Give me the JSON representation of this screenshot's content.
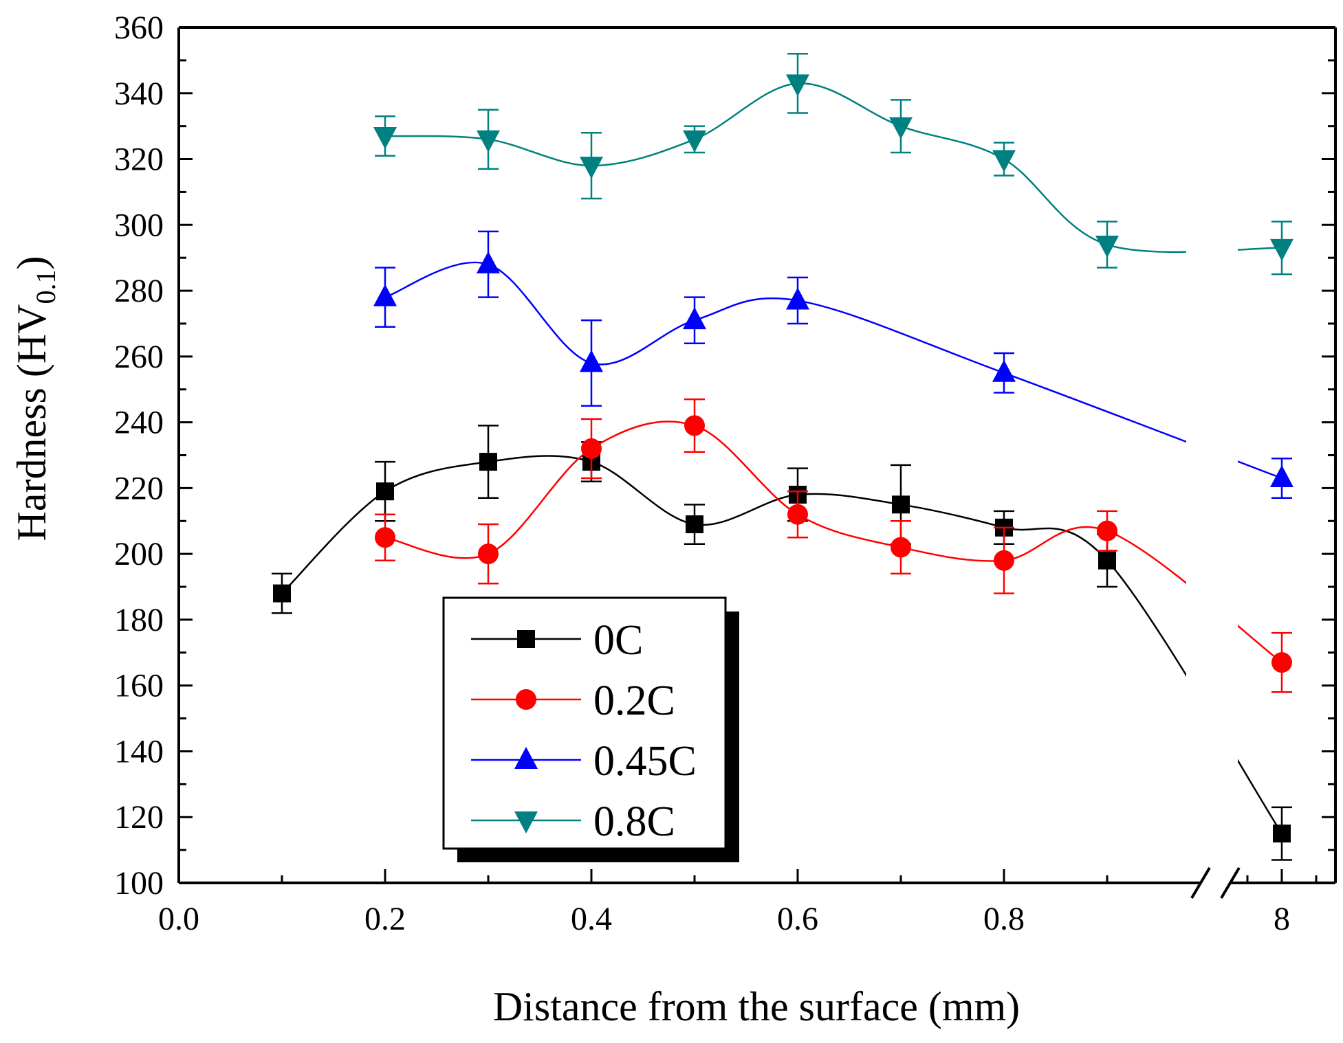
{
  "chart_data": {
    "type": "line",
    "title": "",
    "xlabel": "Distance  from the surface (mm)",
    "ylabel": "Hardness (HV",
    "ylabel_sub": "0.1",
    "ylabel_end": ")",
    "ylim": [
      100,
      360
    ],
    "y_ticks": [
      "100",
      "120",
      "140",
      "160",
      "180",
      "200",
      "220",
      "240",
      "260",
      "280",
      "300",
      "320",
      "340",
      "360"
    ],
    "x_ticks": [
      "0.0",
      "0.2",
      "0.4",
      "0.6",
      "0.8",
      "8"
    ],
    "x_break": "axis broken between 0.95 and 8",
    "legend_position": "center-left",
    "series": [
      {
        "name": "0C",
        "color": "#000000",
        "marker": "square",
        "points": [
          {
            "x": 0.1,
            "y": 188,
            "err": 6
          },
          {
            "x": 0.2,
            "y": 219,
            "err": 9
          },
          {
            "x": 0.3,
            "y": 228,
            "err": 11
          },
          {
            "x": 0.4,
            "y": 228,
            "err": 6
          },
          {
            "x": 0.5,
            "y": 209,
            "err": 6
          },
          {
            "x": 0.6,
            "y": 218,
            "err": 8
          },
          {
            "x": 0.7,
            "y": 215,
            "err": 12
          },
          {
            "x": 0.8,
            "y": 208,
            "err": 5
          },
          {
            "x": 0.9,
            "y": 198,
            "err": 8
          },
          {
            "x": 8,
            "y": 115,
            "err": 8
          }
        ]
      },
      {
        "name": "0.2C",
        "color": "#ff0000",
        "marker": "circle",
        "points": [
          {
            "x": 0.2,
            "y": 205,
            "err": 7
          },
          {
            "x": 0.3,
            "y": 200,
            "err": 9
          },
          {
            "x": 0.4,
            "y": 232,
            "err": 9
          },
          {
            "x": 0.5,
            "y": 239,
            "err": 8
          },
          {
            "x": 0.6,
            "y": 212,
            "err": 7
          },
          {
            "x": 0.7,
            "y": 202,
            "err": 8
          },
          {
            "x": 0.8,
            "y": 198,
            "err": 10
          },
          {
            "x": 0.9,
            "y": 207,
            "err": 6
          },
          {
            "x": 8,
            "y": 167,
            "err": 9
          }
        ]
      },
      {
        "name": "0.45C",
        "color": "#0000ff",
        "marker": "triangle-up",
        "points": [
          {
            "x": 0.2,
            "y": 278,
            "err": 9
          },
          {
            "x": 0.3,
            "y": 288,
            "err": 10
          },
          {
            "x": 0.4,
            "y": 258,
            "err": 13
          },
          {
            "x": 0.5,
            "y": 271,
            "err": 7
          },
          {
            "x": 0.6,
            "y": 277,
            "err": 7
          },
          {
            "x": 0.8,
            "y": 255,
            "err": 6
          },
          {
            "x": 8,
            "y": 223,
            "err": 6
          }
        ]
      },
      {
        "name": "0.8C",
        "color": "#008080",
        "marker": "triangle-down",
        "points": [
          {
            "x": 0.2,
            "y": 327,
            "err": 6
          },
          {
            "x": 0.3,
            "y": 326,
            "err": 9
          },
          {
            "x": 0.4,
            "y": 318,
            "err": 10
          },
          {
            "x": 0.5,
            "y": 326,
            "err": 4
          },
          {
            "x": 0.6,
            "y": 343,
            "err": 9
          },
          {
            "x": 0.7,
            "y": 330,
            "err": 8
          },
          {
            "x": 0.8,
            "y": 320,
            "err": 5
          },
          {
            "x": 0.9,
            "y": 294,
            "err": 7
          },
          {
            "x": 8,
            "y": 293,
            "err": 8
          }
        ]
      }
    ]
  }
}
